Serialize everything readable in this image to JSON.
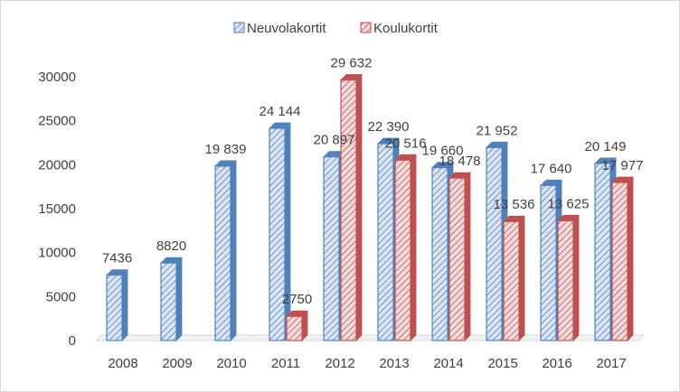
{
  "chart_data": {
    "type": "bar",
    "categories": [
      "2008",
      "2009",
      "2010",
      "2011",
      "2012",
      "2013",
      "2014",
      "2015",
      "2016",
      "2017"
    ],
    "series": [
      {
        "name": "Neuvolakortit",
        "values": [
          7436,
          8820,
          19839,
          24144,
          20897,
          22390,
          19660,
          21952,
          17640,
          20149
        ],
        "labels": [
          "7436",
          "8820",
          "19 839",
          "24 144",
          "20 897",
          "22 390",
          "19 660",
          "21 952",
          "17 640",
          "20 149"
        ],
        "color": "#4f81bd",
        "fill": "#dbe5f1"
      },
      {
        "name": "Koulukortit",
        "values": [
          null,
          null,
          null,
          2750,
          29632,
          20516,
          18478,
          13536,
          13625,
          17977
        ],
        "labels": [
          null,
          null,
          null,
          "2750",
          "29 632",
          "20 516",
          "18 478",
          "13 536",
          "13 625",
          "17 977"
        ],
        "color": "#c0504d",
        "fill": "#f2dcdb"
      }
    ],
    "yticks": [
      "0",
      "5000",
      "10000",
      "15000",
      "20000",
      "25000",
      "30000"
    ],
    "ylim": [
      0,
      30000
    ],
    "grid": false,
    "legend": "top-center",
    "style": "3d-clustered-column-hatched"
  }
}
